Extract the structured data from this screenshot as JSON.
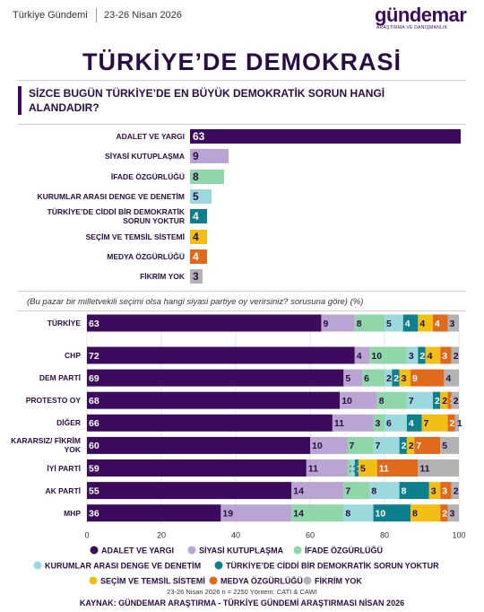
{
  "header": {
    "section": "Türkiye Gündemi",
    "date": "23-26 Nisan 2026",
    "logo": "gündemar",
    "logo_tagline": "ARAŞTIRMA VE DANIŞMANLIK"
  },
  "title": "TÜRKİYE’DE DEMOKRASİ",
  "chart_data": [
    {
      "type": "bar",
      "orientation": "horizontal",
      "title": "SİZCE BUGÜN TÜRKİYE’DE EN BÜYÜK DEMOKRATİK SORUN HANGİ ALANDADIR?",
      "categories": [
        "ADALET VE YARGI",
        "SİYASİ KUTUPLAŞMA",
        "İFADE ÖZGÜRLÜĞÜ",
        "KURUMLAR ARASI DENGE VE DENETİM",
        "TÜRKİYE’DE CİDDİ BİR DEMOKRATİK SORUN YOKTUR",
        "SEÇİM VE TEMSİL SİSTEMİ",
        "MEDYA ÖZGÜRLÜĞÜ",
        "FİKRİM YOK"
      ],
      "values": [
        63,
        9,
        8,
        5,
        4,
        4,
        4,
        3
      ],
      "colors": [
        "#3d0b5e",
        "#b9a4d4",
        "#8fd7a8",
        "#9cd9dc",
        "#0e7f8c",
        "#f2c014",
        "#e0691b",
        "#b3b3b3"
      ]
    },
    {
      "type": "stacked_bar",
      "orientation": "horizontal",
      "subtitle": "(Bu pazar bir milletvekili seçimi olsa hangi siyasi partiye oy verirsiniz? sorusuna göre) (%)",
      "categories": [
        "TÜRKİYE",
        "CHP",
        "DEM PARTİ",
        "PROTESTO OY",
        "DİĞER",
        "KARARSIZ/ FİKRİM YOK",
        "İYİ PARTİ",
        "AK PARTİ",
        "MHP"
      ],
      "xlim": [
        0,
        100
      ],
      "xticks": [
        0,
        20,
        40,
        60,
        80,
        100
      ],
      "series": [
        {
          "name": "ADALET VE YARGI",
          "color": "#3d0b5e",
          "values": [
            63,
            72,
            69,
            68,
            66,
            60,
            59,
            55,
            36
          ]
        },
        {
          "name": "SİYASİ KUTUPLAŞMA",
          "color": "#b9a4d4",
          "values": [
            9,
            4,
            5,
            10,
            11,
            10,
            11,
            14,
            19
          ]
        },
        {
          "name": "İFADE ÖZGÜRLÜĞÜ",
          "color": "#8fd7a8",
          "values": [
            8,
            10,
            6,
            8,
            3,
            7,
            1,
            7,
            14
          ]
        },
        {
          "name": "KURUMLAR ARASI DENGE VE DENETİM",
          "color": "#9cd9dc",
          "values": [
            5,
            3,
            2,
            7,
            6,
            7,
            1,
            8,
            8
          ]
        },
        {
          "name": "TÜRKİYE’DE CİDDİ BİR DEMOKRATİK SORUN YOKTUR",
          "color": "#0e7f8c",
          "values": [
            4,
            2,
            2,
            2,
            4,
            2,
            1,
            8,
            10
          ]
        },
        {
          "name": "SEÇİM VE TEMSİL SİSTEMİ",
          "color": "#f2c014",
          "values": [
            4,
            4,
            3,
            2,
            7,
            2,
            5,
            3,
            8
          ]
        },
        {
          "name": "MEDYA ÖZGÜRLÜĞÜ",
          "color": "#e0691b",
          "values": [
            4,
            3,
            9,
            1,
            2,
            7,
            11,
            3,
            2
          ]
        },
        {
          "name": "FİKRİM YOK",
          "color": "#b3b3b3",
          "values": [
            3,
            2,
            4,
            2,
            1,
            5,
            11,
            2,
            3
          ]
        }
      ]
    }
  ],
  "footer": {
    "note": "23-26 Nisan 2026 n = 2250 Yöntem: CATI & CAWI",
    "source": "KAYNAK: GÜNDEMAR ARAŞTIRMA - TÜRKİYE GÜNDEMİ ARAŞTIRMASI NİSAN 2026"
  }
}
